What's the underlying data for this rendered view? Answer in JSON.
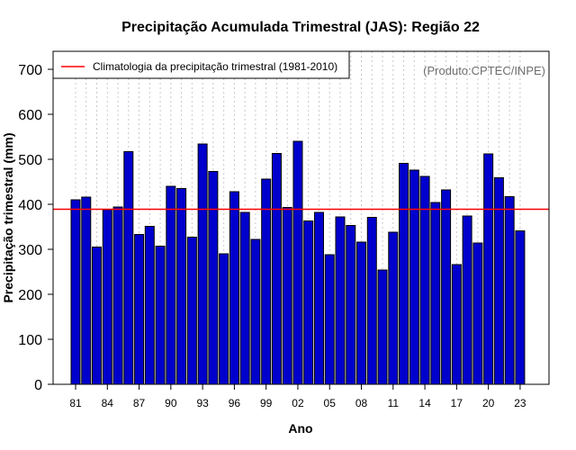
{
  "chart_data": {
    "type": "bar",
    "title": "Precipitação Acumulada Trimestral (JAS): Região 22",
    "xlabel": "Ano",
    "ylabel": "Precipitação trimestral (mm)",
    "ylim": [
      0,
      740
    ],
    "yticks": [
      0,
      100,
      200,
      300,
      400,
      500,
      600,
      700
    ],
    "xtick_labels": [
      "81",
      "84",
      "87",
      "90",
      "93",
      "96",
      "99",
      "02",
      "05",
      "08",
      "11",
      "14",
      "17",
      "20",
      "23"
    ],
    "xtick_years": [
      1981,
      1984,
      1987,
      1990,
      1993,
      1996,
      1999,
      2002,
      2005,
      2008,
      2011,
      2014,
      2017,
      2020,
      2023
    ],
    "categories": [
      1981,
      1982,
      1983,
      1984,
      1985,
      1986,
      1987,
      1988,
      1989,
      1990,
      1991,
      1992,
      1993,
      1994,
      1995,
      1996,
      1997,
      1998,
      1999,
      2000,
      2001,
      2002,
      2003,
      2004,
      2005,
      2006,
      2007,
      2008,
      2009,
      2010,
      2011,
      2012,
      2013,
      2014,
      2015,
      2016,
      2017,
      2018,
      2019,
      2020,
      2021,
      2022,
      2023
    ],
    "values": [
      410,
      416,
      305,
      388,
      394,
      517,
      333,
      351,
      307,
      440,
      435,
      327,
      534,
      473,
      290,
      428,
      382,
      322,
      456,
      513,
      393,
      540,
      363,
      382,
      288,
      372,
      353,
      316,
      371,
      254,
      338,
      491,
      476,
      462,
      404,
      432,
      266,
      374,
      314,
      512,
      459,
      417,
      341
    ],
    "climatology": 389,
    "legend": "Climatologia da precipitação trimestral (1981-2010)",
    "legend_position": "top-left",
    "credit": "(Produto:CPTEC/INPE)",
    "grid": "vertical dotted",
    "colors": {
      "bar": "#0000cd",
      "bar_edge": "#000000",
      "climatology_line": "#ff0000",
      "grid": "#c8c8c8"
    }
  }
}
